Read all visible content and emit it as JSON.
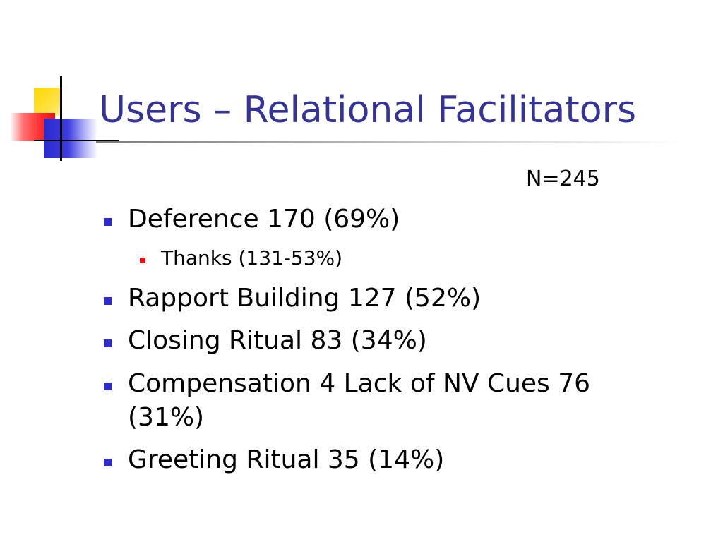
{
  "slide": {
    "title": "Users – Relational Facilitators",
    "sample_size": "N=245",
    "bullets": [
      {
        "text": "Deference 170 (69%)"
      },
      {
        "text": "Rapport Building 127 (52%)"
      },
      {
        "text": "Closing Ritual 83 (34%)"
      },
      {
        "text_line1": "Compensation 4 Lack of NV Cues 76",
        "text_line2": "(31%)"
      },
      {
        "text": "Greeting Ritual 35 (14%)"
      }
    ],
    "sub_bullets": [
      {
        "text": "Thanks (131-53%)"
      }
    ]
  },
  "colors": {
    "title": "#333399",
    "bullet": "#2b2bd0",
    "sub_bullet": "#ee1111",
    "logo_yellow": "#ffd800",
    "logo_red": "#ff2b2b",
    "logo_blue": "#2a2ad0"
  },
  "icons": {
    "bullet": "blue-square-bullet",
    "sub_bullet": "red-square-bullet",
    "logo": "slide-template-logo"
  }
}
